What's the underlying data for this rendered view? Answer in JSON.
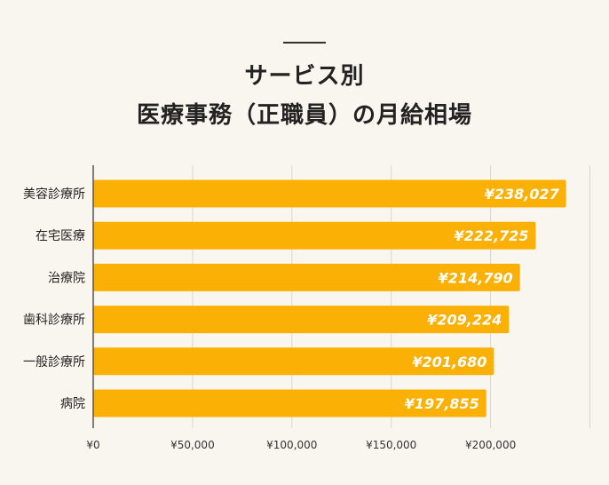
{
  "colors": {
    "background": "#f9f6f0",
    "bar": "#fab005",
    "grid": "#d9d6d0",
    "axis": "#555555",
    "data_label": "#ffffff"
  },
  "chart_data": {
    "type": "bar",
    "orientation": "horizontal",
    "title": [
      "サービス別",
      "医療事務（正職員）の月給相場"
    ],
    "categories": [
      "美容診療所",
      "在宅医療",
      "治療院",
      "歯科診療所",
      "一般診療所",
      "病院"
    ],
    "values": [
      238027,
      222725,
      214790,
      209224,
      201680,
      197855
    ],
    "value_labels": [
      "¥238,027",
      "¥222,725",
      "¥214,790",
      "¥209,224",
      "¥201,680",
      "¥197,855"
    ],
    "xlim": [
      0,
      250000
    ],
    "x_ticks": [
      0,
      50000,
      100000,
      150000,
      200000
    ],
    "x_tick_labels": [
      "¥0",
      "¥50,000",
      "¥100,000",
      "¥150,000",
      "¥200,000"
    ],
    "grid": true,
    "legend": "none"
  }
}
